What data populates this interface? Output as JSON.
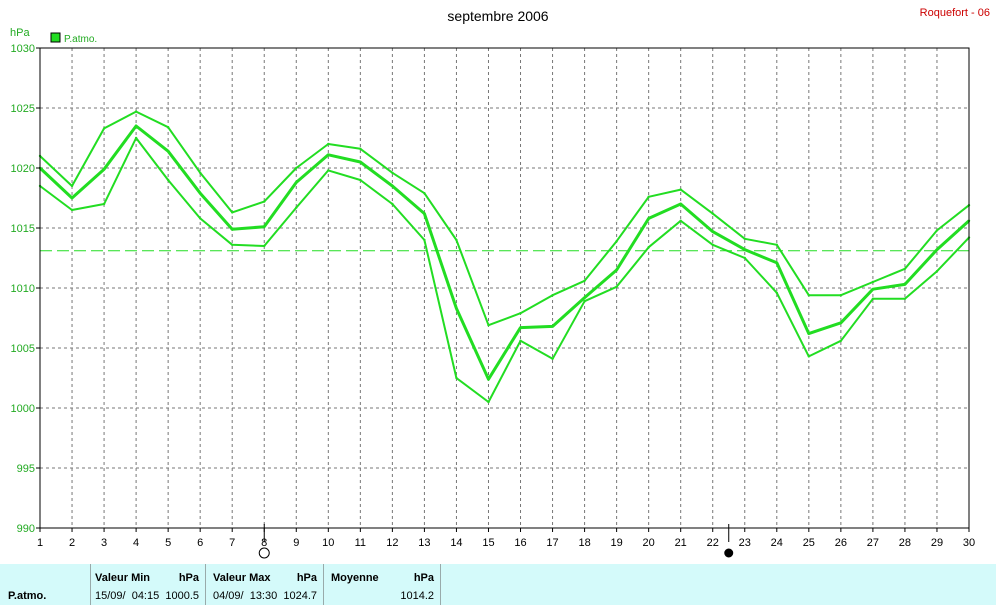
{
  "title": "septembre 2006",
  "station": "Roquefort - 06",
  "unit_label": "hPa",
  "legend_label": "P.atmo.",
  "colors": {
    "series": "#22dd22",
    "station": "#cc0000",
    "grid": "#777777",
    "table_bg": "#d4fafa"
  },
  "chart_data": {
    "type": "line",
    "title": "septembre 2006",
    "ylabel": "hPa",
    "ylim": [
      990,
      1030
    ],
    "yticks": [
      990,
      995,
      1000,
      1005,
      1010,
      1015,
      1020,
      1025,
      1030
    ],
    "xlim": [
      1,
      30
    ],
    "x": [
      1,
      2,
      3,
      4,
      5,
      6,
      7,
      8,
      9,
      10,
      11,
      12,
      13,
      14,
      15,
      16,
      17,
      18,
      19,
      20,
      21,
      22,
      23,
      24,
      25,
      26,
      27,
      28,
      29,
      30
    ],
    "grid": true,
    "mean_line": 1013.1,
    "moon_phases": [
      {
        "day": 8,
        "phase": "full-moon"
      },
      {
        "day": 22.5,
        "phase": "new-moon"
      }
    ],
    "series": [
      {
        "name": "P.atmo.",
        "role": "max",
        "values": [
          1021.0,
          1018.5,
          1023.3,
          1024.7,
          1023.4,
          1019.6,
          1016.3,
          1017.2,
          1020.0,
          1022.0,
          1021.6,
          1019.6,
          1017.9,
          1014.0,
          1006.9,
          1007.9,
          1009.4,
          1010.6,
          1013.9,
          1017.6,
          1018.2,
          1016.2,
          1014.1,
          1013.6,
          1009.4,
          1009.4,
          1010.5,
          1011.6,
          1014.8,
          1016.9
        ]
      },
      {
        "name": "P.atmo.",
        "role": "mean",
        "values": [
          1020.0,
          1017.5,
          1019.9,
          1023.5,
          1021.4,
          1017.9,
          1014.9,
          1015.1,
          1018.8,
          1021.1,
          1020.5,
          1018.5,
          1016.2,
          1008.3,
          1002.4,
          1006.7,
          1006.8,
          1009.2,
          1011.5,
          1015.8,
          1017.0,
          1014.7,
          1013.2,
          1012.1,
          1006.2,
          1007.1,
          1009.9,
          1010.3,
          1013.2,
          1015.6
        ]
      },
      {
        "name": "P.atmo.",
        "role": "min",
        "values": [
          1018.5,
          1016.5,
          1017.0,
          1022.5,
          1019.0,
          1015.8,
          1013.6,
          1013.5,
          1016.7,
          1019.8,
          1019.0,
          1017.0,
          1014.0,
          1002.5,
          1000.5,
          1005.6,
          1004.1,
          1008.9,
          1010.1,
          1013.4,
          1015.6,
          1013.6,
          1012.5,
          1009.6,
          1004.3,
          1005.6,
          1009.1,
          1009.1,
          1011.4,
          1014.2
        ]
      }
    ]
  },
  "stats_table": {
    "row_label": "P.atmo.",
    "min": {
      "header": "Valeur Min",
      "unit": "hPa",
      "datetime": "15/09/  04:15",
      "value": "1000.5"
    },
    "max": {
      "header": "Valeur Max",
      "unit": "hPa",
      "datetime": "04/09/  13:30",
      "value": "1024.7"
    },
    "mean": {
      "header": "Moyenne",
      "unit": "hPa",
      "value": "1014.2"
    }
  }
}
